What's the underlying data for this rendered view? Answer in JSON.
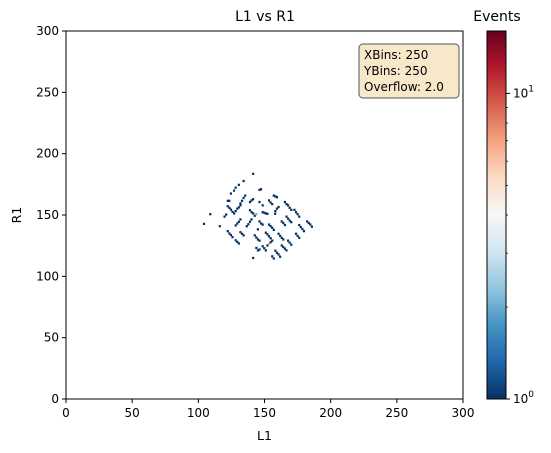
{
  "chart_data": {
    "type": "heatmap",
    "title": "L1 vs R1",
    "xlabel": "L1",
    "ylabel": "R1",
    "xlim": [
      0,
      300
    ],
    "ylim": [
      0,
      300
    ],
    "xticks": [
      0,
      50,
      100,
      150,
      200,
      250,
      300
    ],
    "yticks": [
      0,
      50,
      100,
      150,
      200,
      250,
      300
    ],
    "grid": false,
    "colorbar": {
      "label": "Events",
      "scale": "log",
      "min": 1,
      "max": 16,
      "colormap": "RdBu_r",
      "tick_labels": [
        {
          "value": 1,
          "base": "10",
          "exp": "0"
        },
        {
          "value": 10,
          "base": "10",
          "exp": "1"
        }
      ]
    },
    "info_box": {
      "placement": "top-right",
      "lines": [
        "XBins: 250",
        "YBins: 250",
        "Overflow: 2.0"
      ],
      "background": "#f5deb3"
    },
    "bins": [
      [
        141.2,
        183.3,
        1
      ],
      [
        134.0,
        177.4,
        1
      ],
      [
        130.4,
        174.3,
        1
      ],
      [
        128.0,
        172.0,
        1
      ],
      [
        126.8,
        169.6,
        1
      ],
      [
        124.4,
        167.2,
        1
      ],
      [
        146.0,
        170.2,
        1
      ],
      [
        147.2,
        170.7,
        1
      ],
      [
        156.8,
        165.5,
        1
      ],
      [
        158.0,
        164.9,
        1
      ],
      [
        159.2,
        164.2,
        1
      ],
      [
        135.2,
        165.5,
        1
      ],
      [
        134.0,
        163.6,
        1
      ],
      [
        132.8,
        161.3,
        1
      ],
      [
        131.6,
        159.2,
        1
      ],
      [
        123.2,
        161.3,
        1
      ],
      [
        122.0,
        161.3,
        1
      ],
      [
        141.2,
        162.6,
        1
      ],
      [
        140.0,
        161.6,
        1
      ],
      [
        138.8,
        160.3,
        1
      ],
      [
        146.0,
        160.3,
        1
      ],
      [
        148.4,
        157.6,
        1
      ],
      [
        153.2,
        161.6,
        1
      ],
      [
        154.4,
        159.9,
        1
      ],
      [
        155.6,
        158.6,
        1
      ],
      [
        165.2,
        160.3,
        1
      ],
      [
        166.4,
        158.6,
        1
      ],
      [
        167.6,
        157.6,
        1
      ],
      [
        168.8,
        155.6,
        1
      ],
      [
        170.0,
        153.9,
        1
      ],
      [
        122.0,
        156.9,
        1
      ],
      [
        123.2,
        155.6,
        1
      ],
      [
        124.4,
        154.1,
        1
      ],
      [
        125.6,
        152.3,
        1
      ],
      [
        126.8,
        151.0,
        1
      ],
      [
        128.0,
        152.9,
        1
      ],
      [
        129.2,
        154.9,
        1
      ],
      [
        130.4,
        155.9,
        1
      ],
      [
        131.6,
        157.6,
        1
      ],
      [
        120.8,
        150.1,
        1
      ],
      [
        119.6,
        148.4,
        1
      ],
      [
        108.8,
        150.4,
        1
      ],
      [
        138.8,
        153.6,
        1
      ],
      [
        140.0,
        152.0,
        1
      ],
      [
        141.2,
        151.0,
        1
      ],
      [
        142.4,
        149.1,
        1
      ],
      [
        143.6,
        150.4,
        2
      ],
      [
        148.4,
        152.0,
        1
      ],
      [
        149.6,
        151.6,
        1
      ],
      [
        150.8,
        151.0,
        1
      ],
      [
        152.0,
        150.7,
        1
      ],
      [
        157.8,
        150.7,
        1
      ],
      [
        158.0,
        152.9,
        1
      ],
      [
        159.2,
        154.9,
        1
      ],
      [
        160.4,
        156.2,
        1
      ],
      [
        172.4,
        153.9,
        1
      ],
      [
        173.6,
        152.0,
        1
      ],
      [
        174.8,
        150.4,
        1
      ],
      [
        176.0,
        148.4,
        1
      ],
      [
        182.0,
        144.5,
        1
      ],
      [
        183.2,
        143.2,
        1
      ],
      [
        184.4,
        142.0,
        1
      ],
      [
        185.6,
        140.2,
        1
      ],
      [
        176.0,
        141.5,
        1
      ],
      [
        177.2,
        139.9,
        1
      ],
      [
        178.4,
        138.3,
        1
      ],
      [
        179.6,
        136.6,
        1
      ],
      [
        166.4,
        148.4,
        1
      ],
      [
        167.6,
        146.8,
        1
      ],
      [
        168.8,
        145.2,
        1
      ],
      [
        170.0,
        143.9,
        1
      ],
      [
        162.8,
        144.5,
        1
      ],
      [
        164.0,
        143.2,
        1
      ],
      [
        165.2,
        141.5,
        1
      ],
      [
        153.2,
        141.9,
        1
      ],
      [
        154.4,
        140.6,
        1
      ],
      [
        155.6,
        139.3,
        1
      ],
      [
        156.8,
        137.6,
        1
      ],
      [
        146.0,
        144.5,
        1
      ],
      [
        147.2,
        142.8,
        1
      ],
      [
        148.4,
        141.9,
        1
      ],
      [
        144.8,
        138.0,
        1
      ],
      [
        140.0,
        146.1,
        1
      ],
      [
        138.8,
        144.2,
        1
      ],
      [
        137.6,
        142.2,
        1
      ],
      [
        136.4,
        140.6,
        1
      ],
      [
        131.6,
        146.1,
        1
      ],
      [
        130.4,
        144.2,
        1
      ],
      [
        129.2,
        142.8,
        1
      ],
      [
        128.0,
        141.2,
        1
      ],
      [
        104.0,
        142.5,
        1
      ],
      [
        116.0,
        140.6,
        1
      ],
      [
        122.0,
        136.6,
        1
      ],
      [
        123.2,
        134.7,
        1
      ],
      [
        124.4,
        133.4,
        1
      ],
      [
        125.6,
        131.7,
        1
      ],
      [
        131.6,
        135.7,
        1
      ],
      [
        132.8,
        134.4,
        1
      ],
      [
        134.0,
        133.1,
        1
      ],
      [
        128.0,
        129.1,
        1
      ],
      [
        129.2,
        127.8,
        1
      ],
      [
        130.4,
        126.5,
        1
      ],
      [
        142.4,
        133.1,
        1
      ],
      [
        143.6,
        131.4,
        1
      ],
      [
        144.8,
        129.8,
        1
      ],
      [
        146.0,
        128.8,
        1
      ],
      [
        150.8,
        135.3,
        1
      ],
      [
        152.0,
        134.0,
        1
      ],
      [
        153.2,
        132.4,
        1
      ],
      [
        154.4,
        130.8,
        1
      ],
      [
        155.6,
        128.8,
        1
      ],
      [
        160.4,
        134.4,
        1
      ],
      [
        161.6,
        132.7,
        1
      ],
      [
        162.8,
        131.1,
        1
      ],
      [
        164.0,
        129.8,
        1
      ],
      [
        173.6,
        134.4,
        1
      ],
      [
        174.8,
        132.7,
        1
      ],
      [
        176.0,
        131.1,
        1
      ],
      [
        167.6,
        128.8,
        1
      ],
      [
        168.8,
        127.2,
        1
      ],
      [
        170.0,
        125.5,
        1
      ],
      [
        162.8,
        124.9,
        1
      ],
      [
        164.0,
        123.6,
        1
      ],
      [
        165.2,
        122.3,
        1
      ],
      [
        166.4,
        120.9,
        1
      ],
      [
        152.0,
        124.9,
        1
      ],
      [
        153.2,
        126.2,
        7
      ],
      [
        154.4,
        127.5,
        1
      ],
      [
        148.4,
        124.2,
        1
      ],
      [
        149.6,
        122.6,
        1
      ],
      [
        150.8,
        120.9,
        1
      ],
      [
        146.0,
        121.6,
        1
      ],
      [
        144.8,
        120.9,
        1
      ],
      [
        143.6,
        122.9,
        1
      ],
      [
        158.0,
        120.6,
        1
      ],
      [
        159.2,
        118.9,
        1
      ],
      [
        160.4,
        117.6,
        1
      ],
      [
        161.6,
        115.7,
        1
      ],
      [
        155.6,
        116.0,
        1
      ],
      [
        156.8,
        114.3,
        1
      ],
      [
        141.2,
        114.7,
        1
      ]
    ]
  }
}
